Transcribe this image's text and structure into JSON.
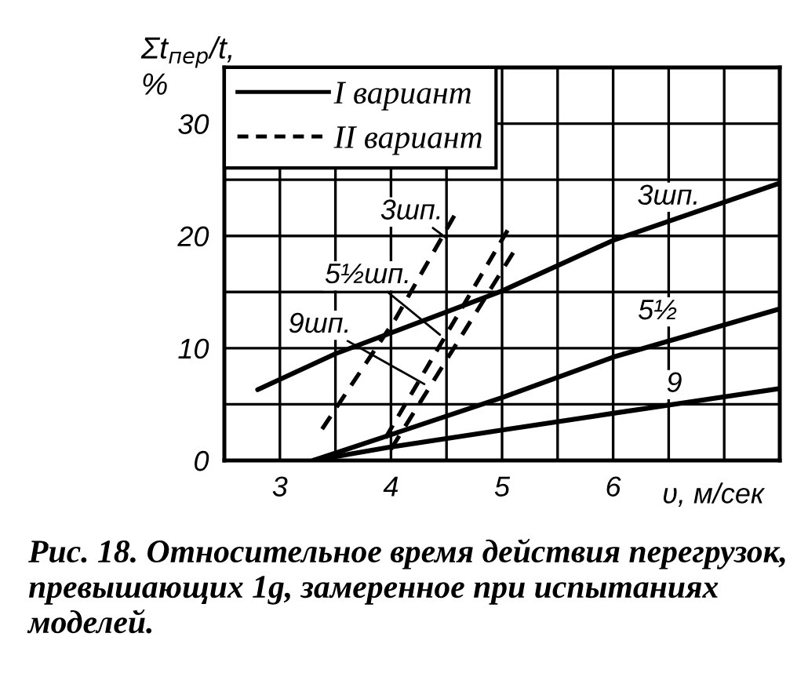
{
  "chart_data": {
    "type": "line",
    "xlabel": "υ, м/сек",
    "ylabel": "Σt$_{пер}$/t,\n%",
    "xlim": [
      2.5,
      7.5
    ],
    "ylim": [
      0,
      35
    ],
    "xticks": [
      3,
      {
        "value": 3.5,
        "label": null
      },
      4,
      {
        "value": 4.5,
        "label": null
      },
      5,
      {
        "value": 5.5,
        "label": null
      },
      6,
      {
        "value": 6.5,
        "label": null
      },
      {
        "value": 7,
        "label": null
      }
    ],
    "yticks": [
      0,
      {
        "value": 5,
        "label": null
      },
      10,
      {
        "value": 15,
        "label": null
      },
      20,
      {
        "value": 25,
        "label": null
      },
      30
    ],
    "grid": true,
    "legend": "top left",
    "series": [
      {
        "name": "I вариант",
        "line_style": "solid",
        "color": "#000000",
        "x": [
          2.8,
          3.5,
          5.0,
          6.0,
          7.5
        ],
        "values": [
          6.3,
          9.5,
          15.1,
          19.6,
          24.7
        ]
      },
      {
        "line_style": "solid",
        "color": "#000000",
        "x": [
          3.3,
          4.0,
          5.0,
          6.0,
          7.5
        ],
        "values": [
          0,
          2.3,
          5.6,
          9.2,
          13.5
        ]
      },
      {
        "line_style": "solid",
        "color": "#000000",
        "x": [
          3.3,
          4.0,
          5.0,
          6.0,
          7.5
        ],
        "values": [
          0,
          1.2,
          2.7,
          4.2,
          6.4
        ]
      },
      {
        "name": "II вариант",
        "line_style": "dashed",
        "color": "#000000",
        "x": [
          3.38,
          4.04,
          4.57
        ],
        "values": [
          2.8,
          12.6,
          21.8
        ]
      },
      {
        "line_style": "dashed",
        "color": "#000000",
        "x": [
          3.95,
          5.05
        ],
        "values": [
          2.0,
          20.5
        ]
      },
      {
        "line_style": "dashed",
        "color": "#000000",
        "x": [
          4.0,
          5.1
        ],
        "values": [
          1.0,
          18.5
        ]
      }
    ],
    "annotations": [
      {
        "text": "3шп.",
        "x": 6.5,
        "y": 21.3
      },
      {
        "text": "5½",
        "x": 6.4,
        "y": 10.3
      },
      {
        "text": "9",
        "x": 6.55,
        "y": 5.0
      },
      {
        "text": "3шп.",
        "x": 4.5,
        "y": 19.8
      },
      {
        "text": "5½шп.",
        "x": 4.44,
        "y": 11.2
      },
      {
        "text": "9шп.",
        "x": 4.3,
        "y": 6.8
      },
      "Рис. 18. Относительное время действия перегрузок, превышающих 1g, замеренное при испытаниях моделей."
    ]
  }
}
